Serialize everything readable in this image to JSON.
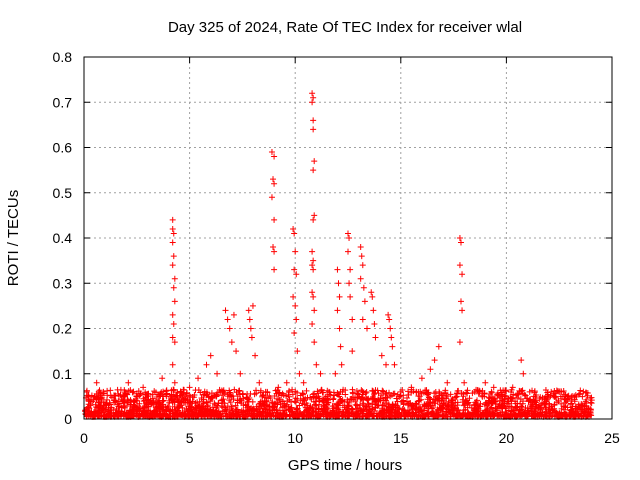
{
  "chart_data": {
    "type": "scatter",
    "title": "Day 325 of 2024, Rate Of TEC Index for receiver wlal",
    "xlabel": "GPS time / hours",
    "ylabel": "ROTI / TECUs",
    "xlim": [
      0,
      25
    ],
    "ylim": [
      0,
      0.8
    ],
    "x_ticks": [
      "0",
      "5",
      "10",
      "15",
      "20",
      "25"
    ],
    "y_ticks": [
      "0",
      "0.1",
      "0.2",
      "0.3",
      "0.4",
      "0.5",
      "0.6",
      "0.7",
      "0.8"
    ],
    "grid": true,
    "marker": "+",
    "color": "#ff0000",
    "series": [
      {
        "points": [
          [
            0.1,
            0.01
          ],
          [
            0.3,
            0.03
          ],
          [
            0.5,
            0.05
          ],
          [
            0.6,
            0.08
          ],
          [
            0.7,
            0.06
          ],
          [
            1.0,
            0.03
          ],
          [
            1.5,
            0.04
          ],
          [
            2.1,
            0.08
          ],
          [
            2.5,
            0.04
          ],
          [
            2.8,
            0.07
          ],
          [
            3.3,
            0.04
          ],
          [
            3.7,
            0.09
          ],
          [
            3.9,
            0.05
          ],
          [
            4.2,
            0.44
          ],
          [
            4.2,
            0.42
          ],
          [
            4.25,
            0.41
          ],
          [
            4.2,
            0.39
          ],
          [
            4.25,
            0.36
          ],
          [
            4.2,
            0.34
          ],
          [
            4.3,
            0.31
          ],
          [
            4.25,
            0.29
          ],
          [
            4.3,
            0.26
          ],
          [
            4.2,
            0.23
          ],
          [
            4.25,
            0.21
          ],
          [
            4.2,
            0.18
          ],
          [
            4.3,
            0.17
          ],
          [
            4.2,
            0.12
          ],
          [
            4.3,
            0.08
          ],
          [
            4.6,
            0.06
          ],
          [
            5.0,
            0.07
          ],
          [
            5.4,
            0.09
          ],
          [
            5.8,
            0.12
          ],
          [
            6.0,
            0.14
          ],
          [
            6.3,
            0.1
          ],
          [
            6.7,
            0.24
          ],
          [
            6.8,
            0.22
          ],
          [
            6.9,
            0.2
          ],
          [
            7.0,
            0.17
          ],
          [
            7.1,
            0.23
          ],
          [
            7.2,
            0.15
          ],
          [
            7.4,
            0.1
          ],
          [
            7.8,
            0.24
          ],
          [
            7.85,
            0.22
          ],
          [
            7.9,
            0.2
          ],
          [
            7.95,
            0.18
          ],
          [
            8.0,
            0.25
          ],
          [
            8.1,
            0.14
          ],
          [
            8.3,
            0.08
          ],
          [
            8.6,
            0.06
          ],
          [
            8.9,
            0.59
          ],
          [
            9.0,
            0.58
          ],
          [
            8.95,
            0.53
          ],
          [
            9.0,
            0.52
          ],
          [
            8.9,
            0.49
          ],
          [
            9.0,
            0.44
          ],
          [
            8.95,
            0.38
          ],
          [
            9.0,
            0.37
          ],
          [
            9.0,
            0.33
          ],
          [
            9.2,
            0.07
          ],
          [
            9.6,
            0.08
          ],
          [
            9.9,
            0.42
          ],
          [
            9.95,
            0.41
          ],
          [
            10.0,
            0.37
          ],
          [
            9.95,
            0.33
          ],
          [
            10.05,
            0.32
          ],
          [
            9.9,
            0.27
          ],
          [
            10.0,
            0.25
          ],
          [
            10.05,
            0.22
          ],
          [
            9.95,
            0.19
          ],
          [
            10.1,
            0.15
          ],
          [
            10.2,
            0.1
          ],
          [
            10.4,
            0.08
          ],
          [
            10.8,
            0.72
          ],
          [
            10.85,
            0.71
          ],
          [
            10.8,
            0.7
          ],
          [
            10.85,
            0.66
          ],
          [
            10.85,
            0.64
          ],
          [
            10.9,
            0.57
          ],
          [
            10.85,
            0.55
          ],
          [
            10.9,
            0.45
          ],
          [
            10.85,
            0.44
          ],
          [
            10.8,
            0.37
          ],
          [
            10.85,
            0.35
          ],
          [
            10.8,
            0.34
          ],
          [
            10.85,
            0.33
          ],
          [
            10.8,
            0.28
          ],
          [
            10.85,
            0.27
          ],
          [
            10.9,
            0.24
          ],
          [
            10.8,
            0.21
          ],
          [
            10.9,
            0.17
          ],
          [
            11.0,
            0.12
          ],
          [
            11.2,
            0.1
          ],
          [
            11.6,
            0.06
          ],
          [
            11.9,
            0.1
          ],
          [
            12.0,
            0.33
          ],
          [
            12.05,
            0.3
          ],
          [
            12.1,
            0.27
          ],
          [
            12.0,
            0.24
          ],
          [
            12.1,
            0.2
          ],
          [
            12.15,
            0.16
          ],
          [
            12.2,
            0.12
          ],
          [
            12.5,
            0.41
          ],
          [
            12.55,
            0.4
          ],
          [
            12.5,
            0.37
          ],
          [
            12.6,
            0.33
          ],
          [
            12.55,
            0.3
          ],
          [
            12.6,
            0.27
          ],
          [
            12.7,
            0.22
          ],
          [
            12.7,
            0.15
          ],
          [
            13.1,
            0.38
          ],
          [
            13.15,
            0.36
          ],
          [
            13.2,
            0.34
          ],
          [
            13.1,
            0.31
          ],
          [
            13.25,
            0.29
          ],
          [
            13.3,
            0.26
          ],
          [
            13.2,
            0.22
          ],
          [
            13.4,
            0.2
          ],
          [
            13.6,
            0.28
          ],
          [
            13.65,
            0.27
          ],
          [
            13.7,
            0.24
          ],
          [
            13.75,
            0.21
          ],
          [
            13.8,
            0.18
          ],
          [
            14.1,
            0.14
          ],
          [
            14.3,
            0.12
          ],
          [
            14.4,
            0.23
          ],
          [
            14.45,
            0.22
          ],
          [
            14.5,
            0.2
          ],
          [
            14.55,
            0.18
          ],
          [
            14.6,
            0.16
          ],
          [
            14.7,
            0.12
          ],
          [
            15.0,
            0.06
          ],
          [
            15.5,
            0.07
          ],
          [
            16.0,
            0.09
          ],
          [
            16.4,
            0.11
          ],
          [
            16.6,
            0.13
          ],
          [
            16.8,
            0.16
          ],
          [
            17.2,
            0.08
          ],
          [
            17.8,
            0.4
          ],
          [
            17.85,
            0.39
          ],
          [
            17.8,
            0.34
          ],
          [
            17.9,
            0.32
          ],
          [
            17.85,
            0.26
          ],
          [
            17.9,
            0.24
          ],
          [
            17.8,
            0.17
          ],
          [
            18.0,
            0.08
          ],
          [
            18.5,
            0.06
          ],
          [
            19.0,
            0.08
          ],
          [
            19.4,
            0.07
          ],
          [
            19.8,
            0.05
          ],
          [
            20.3,
            0.07
          ],
          [
            20.7,
            0.13
          ],
          [
            20.8,
            0.1
          ],
          [
            21.3,
            0.05
          ],
          [
            21.9,
            0.04
          ],
          [
            22.6,
            0.06
          ],
          [
            23.1,
            0.04
          ],
          [
            23.6,
            0.03
          ],
          [
            24.0,
            0.02
          ]
        ]
      }
    ]
  }
}
